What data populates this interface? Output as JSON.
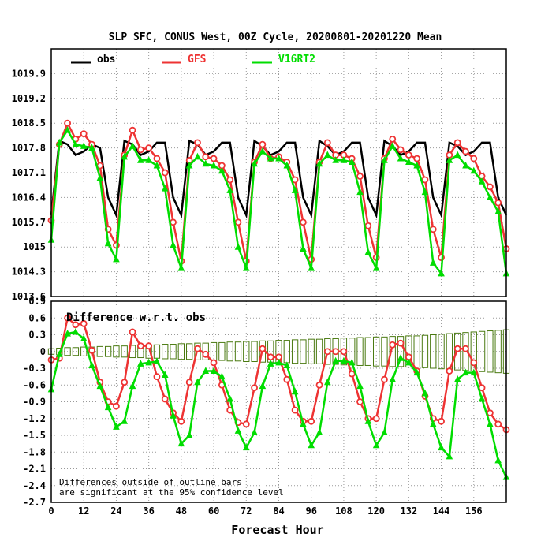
{
  "chart_data": {
    "title": "SLP SFC, CONUS West, 00Z Cycle, 20200801-20201220 Mean",
    "xlabel": "Forecast Hour",
    "x_ticks": [
      0,
      12,
      24,
      36,
      48,
      60,
      72,
      84,
      96,
      108,
      120,
      132,
      144,
      156
    ],
    "x_range": [
      0,
      168
    ],
    "grid": true,
    "legend_placement": "top",
    "colors": {
      "obs": "#000000",
      "GFS": "#ee3333",
      "V16RT2": "#00dd00",
      "bars": "#4a7a10"
    },
    "top_panel": {
      "type": "line",
      "y_range": [
        1013.6,
        1020.6
      ],
      "y_ticks": [
        "1013.6",
        "1014.3",
        "1015",
        "1015.7",
        "1016.4",
        "1017.1",
        "1017.8",
        "1018.5",
        "1019.2",
        "1019.9"
      ],
      "series": [
        {
          "name": "obs",
          "color": "#000000",
          "marker": "none",
          "x": [
            0,
            3,
            6,
            9,
            12,
            15,
            18,
            21,
            24,
            27,
            30,
            33,
            36,
            39,
            42,
            45,
            48,
            51,
            54,
            57,
            60,
            63,
            66,
            69,
            72,
            75,
            78,
            81,
            84,
            87,
            90,
            93,
            96,
            99,
            102,
            105,
            108,
            111,
            114,
            117,
            120,
            123,
            126,
            129,
            132,
            135,
            138,
            141,
            144,
            147,
            150,
            153,
            156,
            159,
            162,
            165,
            168
          ],
          "y": [
            1015.9,
            1018.0,
            1017.9,
            1017.6,
            1017.7,
            1017.9,
            1017.8,
            1016.4,
            1015.9,
            1018.0,
            1017.9,
            1017.6,
            1017.7,
            1017.95,
            1017.95,
            1016.4,
            1015.9,
            1018.0,
            1017.9,
            1017.6,
            1017.7,
            1017.95,
            1017.95,
            1016.4,
            1015.9,
            1018.0,
            1017.85,
            1017.6,
            1017.7,
            1017.95,
            1017.95,
            1016.4,
            1015.9,
            1018.0,
            1017.85,
            1017.6,
            1017.7,
            1017.95,
            1017.95,
            1016.4,
            1015.9,
            1018.0,
            1017.85,
            1017.6,
            1017.7,
            1017.95,
            1017.95,
            1016.4,
            1015.9,
            1017.95,
            1017.85,
            1017.6,
            1017.7,
            1017.95,
            1017.95,
            1016.4,
            1015.9
          ]
        },
        {
          "name": "GFS",
          "color": "#ee3333",
          "marker": "circle",
          "x": [
            0,
            3,
            6,
            9,
            12,
            15,
            18,
            21,
            24,
            27,
            30,
            33,
            36,
            39,
            42,
            45,
            48,
            51,
            54,
            57,
            60,
            63,
            66,
            69,
            72,
            75,
            78,
            81,
            84,
            87,
            90,
            93,
            96,
            99,
            102,
            105,
            108,
            111,
            114,
            117,
            120,
            123,
            126,
            129,
            132,
            135,
            138,
            141,
            144,
            147,
            150,
            153,
            156,
            159,
            162,
            165,
            168
          ],
          "y": [
            1015.75,
            1017.9,
            1018.5,
            1018.05,
            1018.2,
            1017.9,
            1017.3,
            1015.5,
            1015.05,
            1017.6,
            1018.3,
            1017.75,
            1017.8,
            1017.5,
            1017.1,
            1015.7,
            1014.6,
            1017.45,
            1017.95,
            1017.55,
            1017.5,
            1017.3,
            1016.9,
            1015.7,
            1014.6,
            1017.4,
            1017.9,
            1017.5,
            1017.55,
            1017.4,
            1016.9,
            1015.7,
            1014.65,
            1017.4,
            1017.95,
            1017.6,
            1017.6,
            1017.5,
            1017.0,
            1015.6,
            1014.7,
            1017.5,
            1018.05,
            1017.75,
            1017.6,
            1017.5,
            1016.9,
            1015.5,
            1014.7,
            1017.6,
            1017.95,
            1017.7,
            1017.5,
            1017.0,
            1016.7,
            1016.25,
            1014.95
          ]
        },
        {
          "name": "V16RT2",
          "color": "#00dd00",
          "marker": "triangle",
          "x": [
            0,
            3,
            6,
            9,
            12,
            15,
            18,
            21,
            24,
            27,
            30,
            33,
            36,
            39,
            42,
            45,
            48,
            51,
            54,
            57,
            60,
            63,
            66,
            69,
            72,
            75,
            78,
            81,
            84,
            87,
            90,
            93,
            96,
            99,
            102,
            105,
            108,
            111,
            114,
            117,
            120,
            123,
            126,
            129,
            132,
            135,
            138,
            141,
            144,
            147,
            150,
            153,
            156,
            159,
            162,
            165,
            168
          ],
          "y": [
            1015.2,
            1017.95,
            1018.3,
            1017.9,
            1017.85,
            1017.8,
            1016.95,
            1015.1,
            1014.65,
            1017.55,
            1017.85,
            1017.45,
            1017.45,
            1017.3,
            1016.65,
            1015.05,
            1014.4,
            1017.3,
            1017.55,
            1017.35,
            1017.3,
            1017.15,
            1016.6,
            1015.0,
            1014.4,
            1017.35,
            1017.7,
            1017.5,
            1017.5,
            1017.3,
            1016.6,
            1014.95,
            1014.4,
            1017.35,
            1017.6,
            1017.45,
            1017.45,
            1017.4,
            1016.55,
            1014.85,
            1014.4,
            1017.45,
            1017.85,
            1017.5,
            1017.4,
            1017.3,
            1016.55,
            1014.55,
            1014.25,
            1017.45,
            1017.6,
            1017.3,
            1017.15,
            1016.85,
            1016.4,
            1016.0,
            1014.25
          ]
        }
      ]
    },
    "bottom_panel": {
      "type": "line",
      "title": "Difference w.r.t. obs",
      "y_range": [
        -2.7,
        0.9
      ],
      "y_ticks": [
        "-2.7",
        "-2.4",
        "-2.1",
        "-1.8",
        "-1.5",
        "-1.2",
        "-0.9",
        "-0.6",
        "-0.3",
        "0",
        "0.3",
        "0.6",
        "0.9"
      ],
      "series": [
        {
          "name": "GFS",
          "color": "#ee3333",
          "marker": "circle",
          "x": [
            0,
            3,
            6,
            9,
            12,
            15,
            18,
            21,
            24,
            27,
            30,
            33,
            36,
            39,
            42,
            45,
            48,
            51,
            54,
            57,
            60,
            63,
            66,
            69,
            72,
            75,
            78,
            81,
            84,
            87,
            90,
            93,
            96,
            99,
            102,
            105,
            108,
            111,
            114,
            117,
            120,
            123,
            126,
            129,
            132,
            135,
            138,
            141,
            144,
            147,
            150,
            153,
            156,
            159,
            162,
            165,
            168
          ],
          "y": [
            -0.15,
            -0.12,
            0.6,
            0.48,
            0.5,
            0.02,
            -0.55,
            -0.9,
            -0.98,
            -0.55,
            0.35,
            0.1,
            0.1,
            -0.45,
            -0.85,
            -1.1,
            -1.25,
            -0.55,
            0.05,
            -0.05,
            -0.2,
            -0.6,
            -1.05,
            -1.27,
            -1.3,
            -0.65,
            0.05,
            -0.1,
            -0.1,
            -0.5,
            -1.05,
            -1.25,
            -1.25,
            -0.6,
            0.0,
            0.0,
            0.0,
            -0.4,
            -0.9,
            -1.2,
            -1.2,
            -0.5,
            0.12,
            0.15,
            -0.1,
            -0.35,
            -0.8,
            -1.2,
            -1.25,
            -0.35,
            0.05,
            0.05,
            -0.2,
            -0.65,
            -1.1,
            -1.3,
            -1.4
          ]
        },
        {
          "name": "V16RT2",
          "color": "#00dd00",
          "marker": "triangle",
          "x": [
            0,
            3,
            6,
            9,
            12,
            15,
            18,
            21,
            24,
            27,
            30,
            33,
            36,
            39,
            42,
            45,
            48,
            51,
            54,
            57,
            60,
            63,
            66,
            69,
            72,
            75,
            78,
            81,
            84,
            87,
            90,
            93,
            96,
            99,
            102,
            105,
            108,
            111,
            114,
            117,
            120,
            123,
            126,
            129,
            132,
            135,
            138,
            141,
            144,
            147,
            150,
            153,
            156,
            159,
            162,
            165,
            168
          ],
          "y": [
            -0.68,
            -0.05,
            0.32,
            0.35,
            0.23,
            -0.25,
            -0.62,
            -1.0,
            -1.35,
            -1.25,
            -0.62,
            -0.22,
            -0.2,
            -0.18,
            -0.42,
            -1.15,
            -1.65,
            -1.5,
            -0.55,
            -0.35,
            -0.35,
            -0.45,
            -0.85,
            -1.42,
            -1.72,
            -1.45,
            -0.62,
            -0.22,
            -0.2,
            -0.25,
            -0.72,
            -1.3,
            -1.68,
            -1.45,
            -0.55,
            -0.17,
            -0.17,
            -0.2,
            -0.62,
            -1.25,
            -1.68,
            -1.45,
            -0.5,
            -0.12,
            -0.2,
            -0.38,
            -0.75,
            -1.3,
            -1.72,
            -1.88,
            -0.5,
            -0.38,
            -0.38,
            -0.85,
            -1.3,
            -1.95,
            -2.25
          ]
        }
      ],
      "significance_bars": {
        "x": [
          0,
          3,
          6,
          9,
          12,
          15,
          18,
          21,
          24,
          27,
          30,
          33,
          36,
          39,
          42,
          45,
          48,
          51,
          54,
          57,
          60,
          63,
          66,
          69,
          72,
          75,
          78,
          81,
          84,
          87,
          90,
          93,
          96,
          99,
          102,
          105,
          108,
          111,
          114,
          117,
          120,
          123,
          126,
          129,
          132,
          135,
          138,
          141,
          144,
          147,
          150,
          153,
          156,
          159,
          162,
          165,
          168
        ],
        "half_width": [
          0.05,
          0.06,
          0.07,
          0.07,
          0.08,
          0.08,
          0.09,
          0.09,
          0.1,
          0.1,
          0.11,
          0.11,
          0.12,
          0.12,
          0.13,
          0.13,
          0.14,
          0.14,
          0.15,
          0.15,
          0.16,
          0.16,
          0.17,
          0.17,
          0.18,
          0.18,
          0.19,
          0.19,
          0.2,
          0.2,
          0.21,
          0.21,
          0.22,
          0.22,
          0.23,
          0.23,
          0.24,
          0.24,
          0.25,
          0.25,
          0.26,
          0.26,
          0.27,
          0.27,
          0.28,
          0.28,
          0.29,
          0.3,
          0.31,
          0.32,
          0.33,
          0.34,
          0.35,
          0.36,
          0.37,
          0.38,
          0.39
        ]
      },
      "note_lines": [
        "Differences outside of outline bars",
        "are significant at the 95% confidence level"
      ]
    }
  }
}
